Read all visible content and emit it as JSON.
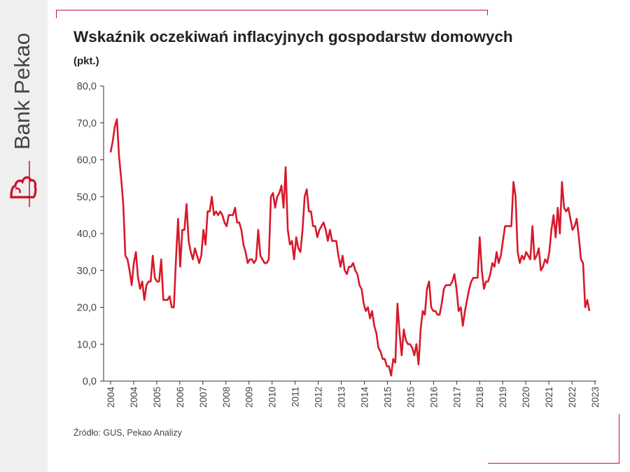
{
  "brand": {
    "name": "Bank Pekao"
  },
  "colors": {
    "accent": "#c8102e",
    "line": "#d7192b",
    "axis": "#333333"
  },
  "chart_data": {
    "type": "line",
    "title": "Wskaźnik oczekiwań inflacyjnych gospodarstw domowych",
    "subtitle": "(pkt.)",
    "source": "Źródło: GUS, Pekao Analizy",
    "ylim": [
      0,
      80
    ],
    "yticks": [
      "80,0",
      "70,0",
      "60,0",
      "50,0",
      "40,0",
      "30,0",
      "20,0",
      "10,0",
      "0,0"
    ],
    "xticks": [
      "2004",
      "2004",
      "2005",
      "2006",
      "2007",
      "2008",
      "2009",
      "2010",
      "2011",
      "2012",
      "2013",
      "2014",
      "2015",
      "2015",
      "2016",
      "2017",
      "2018",
      "2019",
      "2020",
      "2021",
      "2022",
      "2023"
    ],
    "grid": false,
    "legend": "none",
    "series": [
      {
        "values": [
          62.0,
          65.0,
          69.0,
          71.0,
          61.0,
          55.0,
          48.0,
          34.0,
          33.0,
          30.0,
          26.0,
          32.0,
          35.0,
          28.0,
          25.0,
          27.0,
          22.0,
          26.0,
          27.0,
          27.0,
          34.0,
          28.0,
          27.0,
          27.0,
          33.0,
          22.0,
          22.0,
          22.0,
          23.0,
          20.0,
          20.0,
          33.0,
          44.0,
          31.0,
          41.0,
          41.0,
          48.0,
          38.0,
          35.0,
          33.0,
          36.0,
          34.0,
          32.0,
          34.0,
          41.0,
          37.0,
          46.0,
          46.0,
          50.0,
          45.0,
          46.0,
          45.0,
          46.0,
          45.0,
          43.0,
          42.0,
          45.0,
          45.0,
          45.0,
          47.0,
          43.0,
          43.0,
          41.0,
          37.0,
          35.0,
          32.0,
          33.0,
          33.0,
          32.0,
          33.0,
          41.0,
          34.0,
          33.0,
          32.0,
          32.0,
          33.0,
          50.0,
          51.0,
          47.0,
          50.0,
          51.0,
          53.0,
          47.0,
          58.0,
          41.0,
          37.0,
          38.0,
          33.0,
          39.0,
          36.0,
          35.0,
          41.0,
          50.0,
          52.0,
          46.0,
          46.0,
          42.0,
          42.0,
          39.0,
          41.0,
          42.0,
          43.0,
          41.0,
          38.0,
          41.0,
          38.0,
          38.0,
          38.0,
          34.0,
          31.0,
          34.0,
          30.0,
          29.0,
          31.0,
          31.0,
          32.0,
          30.0,
          29.0,
          26.0,
          25.0,
          21.0,
          19.0,
          20.0,
          17.0,
          19.0,
          15.0,
          13.0,
          9.0,
          8.0,
          6.0,
          6.0,
          4.0,
          4.0,
          1.5,
          6.0,
          5.0,
          21.0,
          13.0,
          7.0,
          14.0,
          11.0,
          10.0,
          10.0,
          9.0,
          7.0,
          10.0,
          4.5,
          14.0,
          19.0,
          18.0,
          25.0,
          27.0,
          20.0,
          19.0,
          19.0,
          18.0,
          18.0,
          21.0,
          25.0,
          26.0,
          26.0,
          26.0,
          27.0,
          29.0,
          25.0,
          19.0,
          20.0,
          15.0,
          19.0,
          22.0,
          25.0,
          27.0,
          28.0,
          28.0,
          28.0,
          39.0,
          30.0,
          25.0,
          27.0,
          27.0,
          29.0,
          32.0,
          31.0,
          35.0,
          32.0,
          34.0,
          38.0,
          42.0,
          42.0,
          42.0,
          42.0,
          54.0,
          50.0,
          35.0,
          32.0,
          34.0,
          33.0,
          35.0,
          34.0,
          33.0,
          42.0,
          33.0,
          34.0,
          36.0,
          30.0,
          31.0,
          33.0,
          32.0,
          35.0,
          41.0,
          45.0,
          39.0,
          47.0,
          40.0,
          54.0,
          47.0,
          46.0,
          47.0,
          44.0,
          41.0,
          42.0,
          44.0,
          39.0,
          33.0,
          32.0,
          20.0,
          22.0,
          19.0
        ]
      }
    ]
  }
}
